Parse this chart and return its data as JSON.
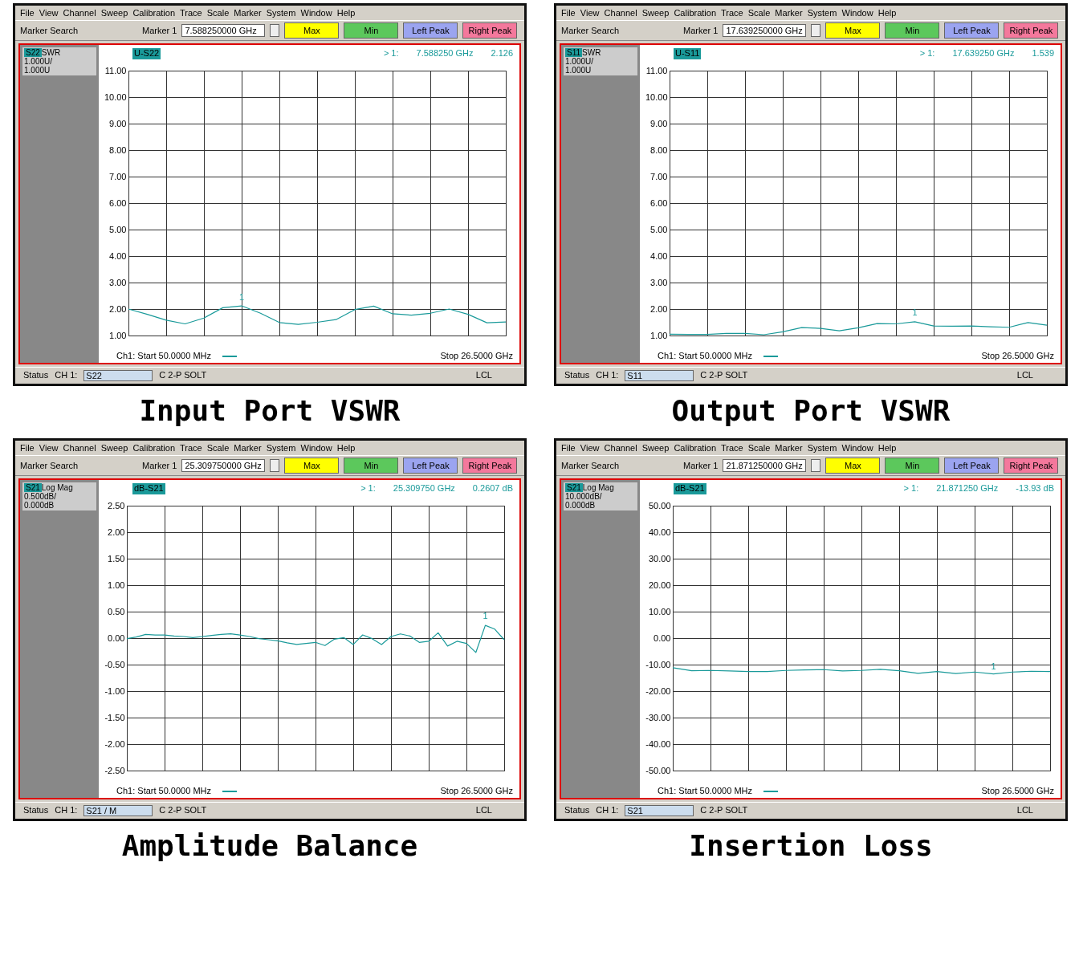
{
  "chart_data": [
    {
      "type": "line",
      "title": "Input Port VSWR",
      "categories": [
        null,
        null,
        null,
        null,
        null,
        null,
        null,
        null,
        null,
        null,
        null,
        null,
        null,
        null,
        null,
        null,
        null,
        null,
        null,
        null,
        null
      ],
      "ylim": [
        1,
        11
      ],
      "yticks": [
        {
          "value": 1,
          "label": "1.00"
        },
        {
          "value": 2,
          "label": "2.00"
        },
        {
          "value": 3,
          "label": "3.00"
        },
        {
          "value": 4,
          "label": "4.00"
        },
        {
          "value": 5,
          "label": "5.00"
        },
        {
          "value": 6,
          "label": "6.00"
        },
        {
          "value": 7,
          "label": "7.00"
        },
        {
          "value": 8,
          "label": "8.00"
        },
        {
          "value": 9,
          "label": "9.00"
        },
        {
          "value": 10,
          "label": "10.00"
        },
        {
          "value": 11,
          "label": "11.00"
        }
      ],
      "grid": true,
      "tick_labels": "y",
      "series": [
        {
          "color": "#1a9a9a",
          "values": [
            2.0,
            1.8,
            1.58,
            1.44,
            1.66,
            2.05,
            2.12,
            1.84,
            1.49,
            1.42,
            1.5,
            1.6,
            1.98,
            2.11,
            1.82,
            1.77,
            1.84,
            2.0,
            1.8,
            1.48,
            1.51
          ]
        }
      ],
      "annotations": [
        "File  View  Channel  Sweep  Calibration  Trace  Scale  Marker  System  Window  Help",
        "Marker Search",
        "Marker 1",
        "7.588250000 GHz",
        "Max",
        "Min",
        "Left Peak",
        "Right Peak",
        "S22",
        "SWR",
        "1.000U/",
        "1.000U",
        "U-S22",
        "> 1:",
        "7.588250 GHz",
        "2.126",
        "Ch1:  Start  50.0000 MHz",
        "Stop  26.5000 GHz",
        "Status",
        "CH 1:",
        "S22",
        "C  2-P SOLT",
        "LCL",
        {
          "text": "1",
          "y": 2.126
        }
      ]
    },
    {
      "type": "line",
      "title": "Output Port VSWR",
      "categories": [
        null,
        null,
        null,
        null,
        null,
        null,
        null,
        null,
        null,
        null,
        null,
        null,
        null,
        null,
        null,
        null,
        null,
        null,
        null,
        null,
        null
      ],
      "ylim": [
        1,
        11
      ],
      "yticks": [
        {
          "value": 1,
          "label": "1.00"
        },
        {
          "value": 2,
          "label": "2.00"
        },
        {
          "value": 3,
          "label": "3.00"
        },
        {
          "value": 4,
          "label": "4.00"
        },
        {
          "value": 5,
          "label": "5.00"
        },
        {
          "value": 6,
          "label": "6.00"
        },
        {
          "value": 7,
          "label": "7.00"
        },
        {
          "value": 8,
          "label": "8.00"
        },
        {
          "value": 9,
          "label": "9.00"
        },
        {
          "value": 10,
          "label": "10.00"
        },
        {
          "value": 11,
          "label": "11.00"
        }
      ],
      "grid": true,
      "tick_labels": "y",
      "series": [
        {
          "color": "#1a9a9a",
          "values": [
            1.05,
            1.04,
            1.04,
            1.08,
            1.08,
            1.03,
            1.14,
            1.3,
            1.27,
            1.18,
            1.29,
            1.45,
            1.44,
            1.52,
            1.36,
            1.35,
            1.36,
            1.33,
            1.31,
            1.49,
            1.39
          ]
        }
      ],
      "annotations": [
        "File  View  Channel  Sweep  Calibration  Trace  Scale  Marker  System  Window  Help",
        "Marker Search",
        "Marker 1",
        "17.639250000 GHz",
        "Max",
        "Min",
        "Left Peak",
        "Right Peak",
        "S11",
        "SWR",
        "1.000U/",
        "1.000U",
        "U-S11",
        "> 1:",
        "17.639250 GHz",
        "1.539",
        "Ch1:  Start  50.0000 MHz",
        "Stop  26.5000 GHz",
        "Status",
        "CH 1:",
        "S11",
        "C  2-P SOLT",
        "LCL",
        {
          "text": "1",
          "y": 1.539
        }
      ]
    },
    {
      "type": "line",
      "title": "Amplitude Balance",
      "categories": [
        null,
        null,
        null,
        null,
        null,
        null,
        null,
        null,
        null,
        null,
        null,
        null,
        null,
        null,
        null,
        null,
        null,
        null,
        null,
        null,
        null,
        null,
        null,
        null,
        null,
        null,
        null,
        null,
        null,
        null,
        null,
        null,
        null,
        null,
        null,
        null,
        null,
        null,
        null,
        null,
        null
      ],
      "ylim": [
        -2.5,
        2.5
      ],
      "yticks": [
        {
          "value": -2.5,
          "label": "-2.50"
        },
        {
          "value": -2,
          "label": "-2.00"
        },
        {
          "value": -1.5,
          "label": "-1.50"
        },
        {
          "value": -1,
          "label": "-1.00"
        },
        {
          "value": -0.5,
          "label": "-0.50"
        },
        {
          "value": 0,
          "label": "0.00"
        },
        {
          "value": 0.5,
          "label": "0.50"
        },
        {
          "value": 1,
          "label": "1.00"
        },
        {
          "value": 1.5,
          "label": "1.50"
        },
        {
          "value": 2,
          "label": "2.00"
        },
        {
          "value": 2.5,
          "label": "2.50"
        }
      ],
      "grid": true,
      "tick_labels": "y",
      "series": [
        {
          "color": "#1a9a9a",
          "values": [
            -0.01,
            0.02,
            0.07,
            0.06,
            0.06,
            0.04,
            0.03,
            0.01,
            0.03,
            0.05,
            0.07,
            0.08,
            0.06,
            0.03,
            -0.01,
            -0.03,
            -0.05,
            -0.09,
            -0.12,
            -0.1,
            -0.08,
            -0.14,
            -0.02,
            0.01,
            -0.12,
            0.06,
            -0.01,
            -0.12,
            0.03,
            0.08,
            0.04,
            -0.08,
            -0.06,
            0.1,
            -0.15,
            -0.06,
            -0.1,
            -0.27,
            0.24,
            0.17,
            -0.03
          ]
        }
      ],
      "annotations": [
        "File  View  Channel  Sweep  Calibration  Trace  Scale  Marker  System  Window  Help",
        "Marker Search",
        "Marker 1",
        "25.309750000 GHz",
        "Max",
        "Min",
        "Left Peak",
        "Right Peak",
        "S21",
        "Log Mag",
        "0.500dB/",
        "0.000dB",
        "dB-S21",
        "> 1:",
        "25.309750 GHz",
        "0.2607 dB",
        "Ch1:  Start  50.0000 MHz",
        "Stop  26.5000 GHz",
        "Status",
        "CH 1:",
        "S21 / M",
        "C  2-P SOLT",
        "LCL",
        {
          "text": "1",
          "y": 0.2607
        }
      ]
    },
    {
      "type": "line",
      "title": "Insertion Loss",
      "categories": [
        null,
        null,
        null,
        null,
        null,
        null,
        null,
        null,
        null,
        null,
        null,
        null,
        null,
        null,
        null,
        null,
        null,
        null,
        null,
        null,
        null
      ],
      "ylim": [
        -50,
        50
      ],
      "yticks": [
        {
          "value": -50,
          "label": "-50.00"
        },
        {
          "value": -40,
          "label": "-40.00"
        },
        {
          "value": -30,
          "label": "-30.00"
        },
        {
          "value": -20,
          "label": "-20.00"
        },
        {
          "value": -10,
          "label": "-10.00"
        },
        {
          "value": 0,
          "label": "0.00"
        },
        {
          "value": 10,
          "label": "10.00"
        },
        {
          "value": 20,
          "label": "20.00"
        },
        {
          "value": 30,
          "label": "30.00"
        },
        {
          "value": 40,
          "label": "40.00"
        },
        {
          "value": 50,
          "label": "50.00"
        }
      ],
      "grid": true,
      "tick_labels": "y",
      "series": [
        {
          "color": "#1a9a9a",
          "values": [
            -11.2,
            -12.3,
            -12.2,
            -12.4,
            -12.6,
            -12.6,
            -12.2,
            -12.0,
            -11.9,
            -12.4,
            -12.2,
            -11.8,
            -12.3,
            -13.3,
            -12.6,
            -13.4,
            -12.8,
            -13.5,
            -12.8,
            -12.5,
            -12.6
          ]
        }
      ],
      "annotations": [
        "File  View  Channel  Sweep  Calibration  Trace  Scale  Marker  System  Window  Help",
        "Marker Search",
        "Marker 1",
        "21.871250000 GHz",
        "Max",
        "Min",
        "Left Peak",
        "Right Peak",
        "S21",
        "Log Mag",
        "10.000dB/",
        "0.000dB",
        "dB-S21",
        "> 1:",
        "21.871250 GHz",
        "-13.93 dB",
        "Ch1:  Start  50.0000 MHz",
        "Stop  26.5000 GHz",
        "Status",
        "CH 1:",
        "S21",
        "C  2-P SOLT",
        "LCL",
        {
          "text": "1",
          "y": -13.93
        }
      ]
    }
  ]
}
